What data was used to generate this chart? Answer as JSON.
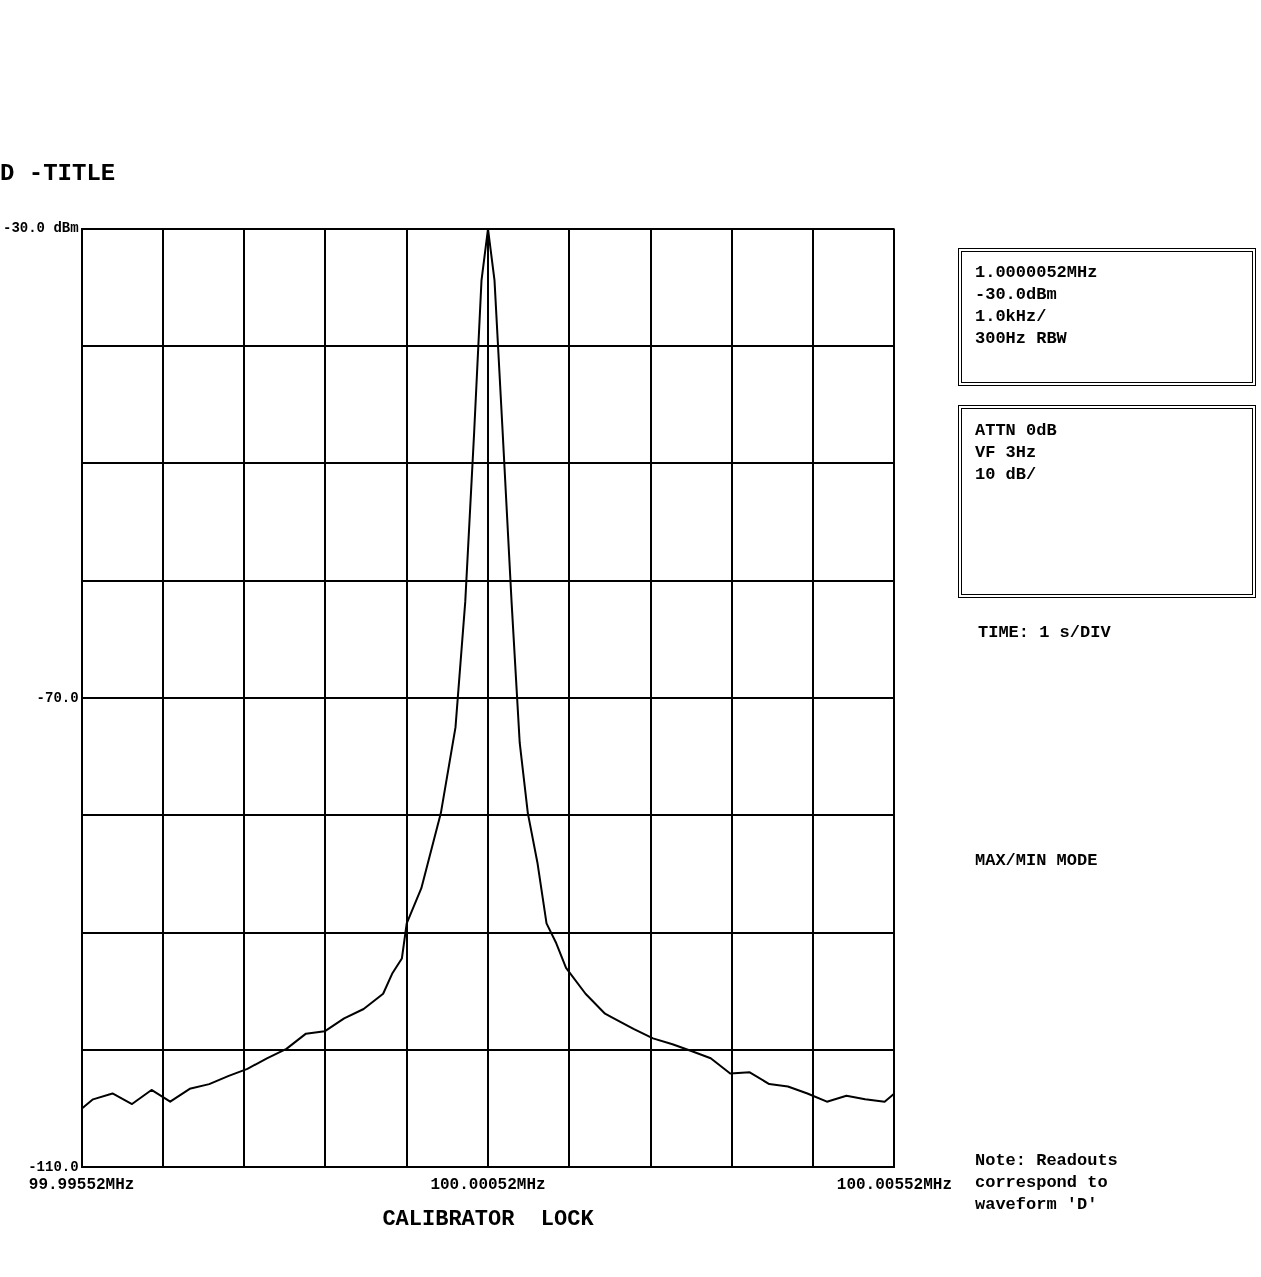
{
  "chart_data": {
    "type": "line",
    "title": "D -TITLE",
    "xlabel": "CALIBRATOR  LOCK",
    "annotations": [
      "1.0000052MHz\n-30.0dBm\n1.0kHz/\n300Hz RBW",
      "ATTN 0dB\nVF 3Hz\n10 dB/",
      "TIME: 1 s/DIV",
      "MAX/MIN MODE",
      "Note:  Readouts\ncorrespond to\nwaveform 'D'"
    ],
    "x": [
      99.99552,
      99.99566,
      99.9959,
      99.99614,
      99.99638,
      99.99661,
      99.99685,
      99.99709,
      99.99733,
      99.99756,
      99.9978,
      99.99804,
      99.99828,
      99.99851,
      99.99875,
      99.99899,
      99.99923,
      99.99934,
      99.99946,
      99.99952,
      99.9997,
      99.99994,
      100.00012,
      100.00024,
      100.00035,
      100.00044,
      100.00052,
      100.0006,
      100.0007,
      100.00081,
      100.00091,
      100.00101,
      100.00113,
      100.00124,
      100.00136,
      100.00148,
      100.00172,
      100.00196,
      100.00231,
      100.00255,
      100.00279,
      100.00303,
      100.00326,
      100.0035,
      100.00374,
      100.00398,
      100.00421,
      100.00445,
      100.00469,
      100.00493,
      100.00516,
      100.0054,
      100.00552
    ],
    "series": [
      {
        "color": "#000000",
        "values": [
          -105.0,
          -104.2,
          -103.7,
          -104.6,
          -103.4,
          -104.4,
          -103.3,
          -102.9,
          -102.2,
          -101.6,
          -100.7,
          -99.9,
          -98.6,
          -98.4,
          -97.3,
          -96.5,
          -95.2,
          -93.5,
          -92.2,
          -89.2,
          -86.2,
          -79.8,
          -72.5,
          -61.8,
          -47.3,
          -34.4,
          -30.0,
          -34.4,
          -47.3,
          -61.8,
          -73.8,
          -79.8,
          -84.1,
          -89.2,
          -90.9,
          -93.0,
          -95.2,
          -96.9,
          -98.2,
          -99.0,
          -99.5,
          -100.1,
          -100.7,
          -102.0,
          -101.9,
          -102.9,
          -103.1,
          -103.7,
          -104.4,
          -103.9,
          -104.2,
          -104.4,
          -103.7
        ]
      }
    ],
    "xlim": [
      99.99552,
      100.00552
    ],
    "xticks": [
      {
        "value": 99.99552,
        "label": "99.99552MHz"
      },
      {
        "value": 99.99652,
        "label": null
      },
      {
        "value": 99.99752,
        "label": null
      },
      {
        "value": 99.99852,
        "label": null
      },
      {
        "value": 99.99952,
        "label": null
      },
      {
        "value": 100.00052,
        "label": "100.00052MHz"
      },
      {
        "value": 100.00152,
        "label": null
      },
      {
        "value": 100.00252,
        "label": null
      },
      {
        "value": 100.00352,
        "label": null
      },
      {
        "value": 100.00452,
        "label": null
      },
      {
        "value": 100.00552,
        "label": "100.00552MHz"
      }
    ],
    "ylim": [
      -110,
      -30
    ],
    "yticks": [
      {
        "value": -30,
        "label": "-30.0 dBm"
      },
      {
        "value": -40,
        "label": null
      },
      {
        "value": -50,
        "label": null
      },
      {
        "value": -60,
        "label": null
      },
      {
        "value": -70,
        "label": "-70.0"
      },
      {
        "value": -80,
        "label": null
      },
      {
        "value": -90,
        "label": null
      },
      {
        "value": -100,
        "label": null
      },
      {
        "value": -110,
        "label": "-110.0"
      }
    ],
    "grid": true,
    "marker": "none",
    "line_style": "solid",
    "legend": false
  }
}
